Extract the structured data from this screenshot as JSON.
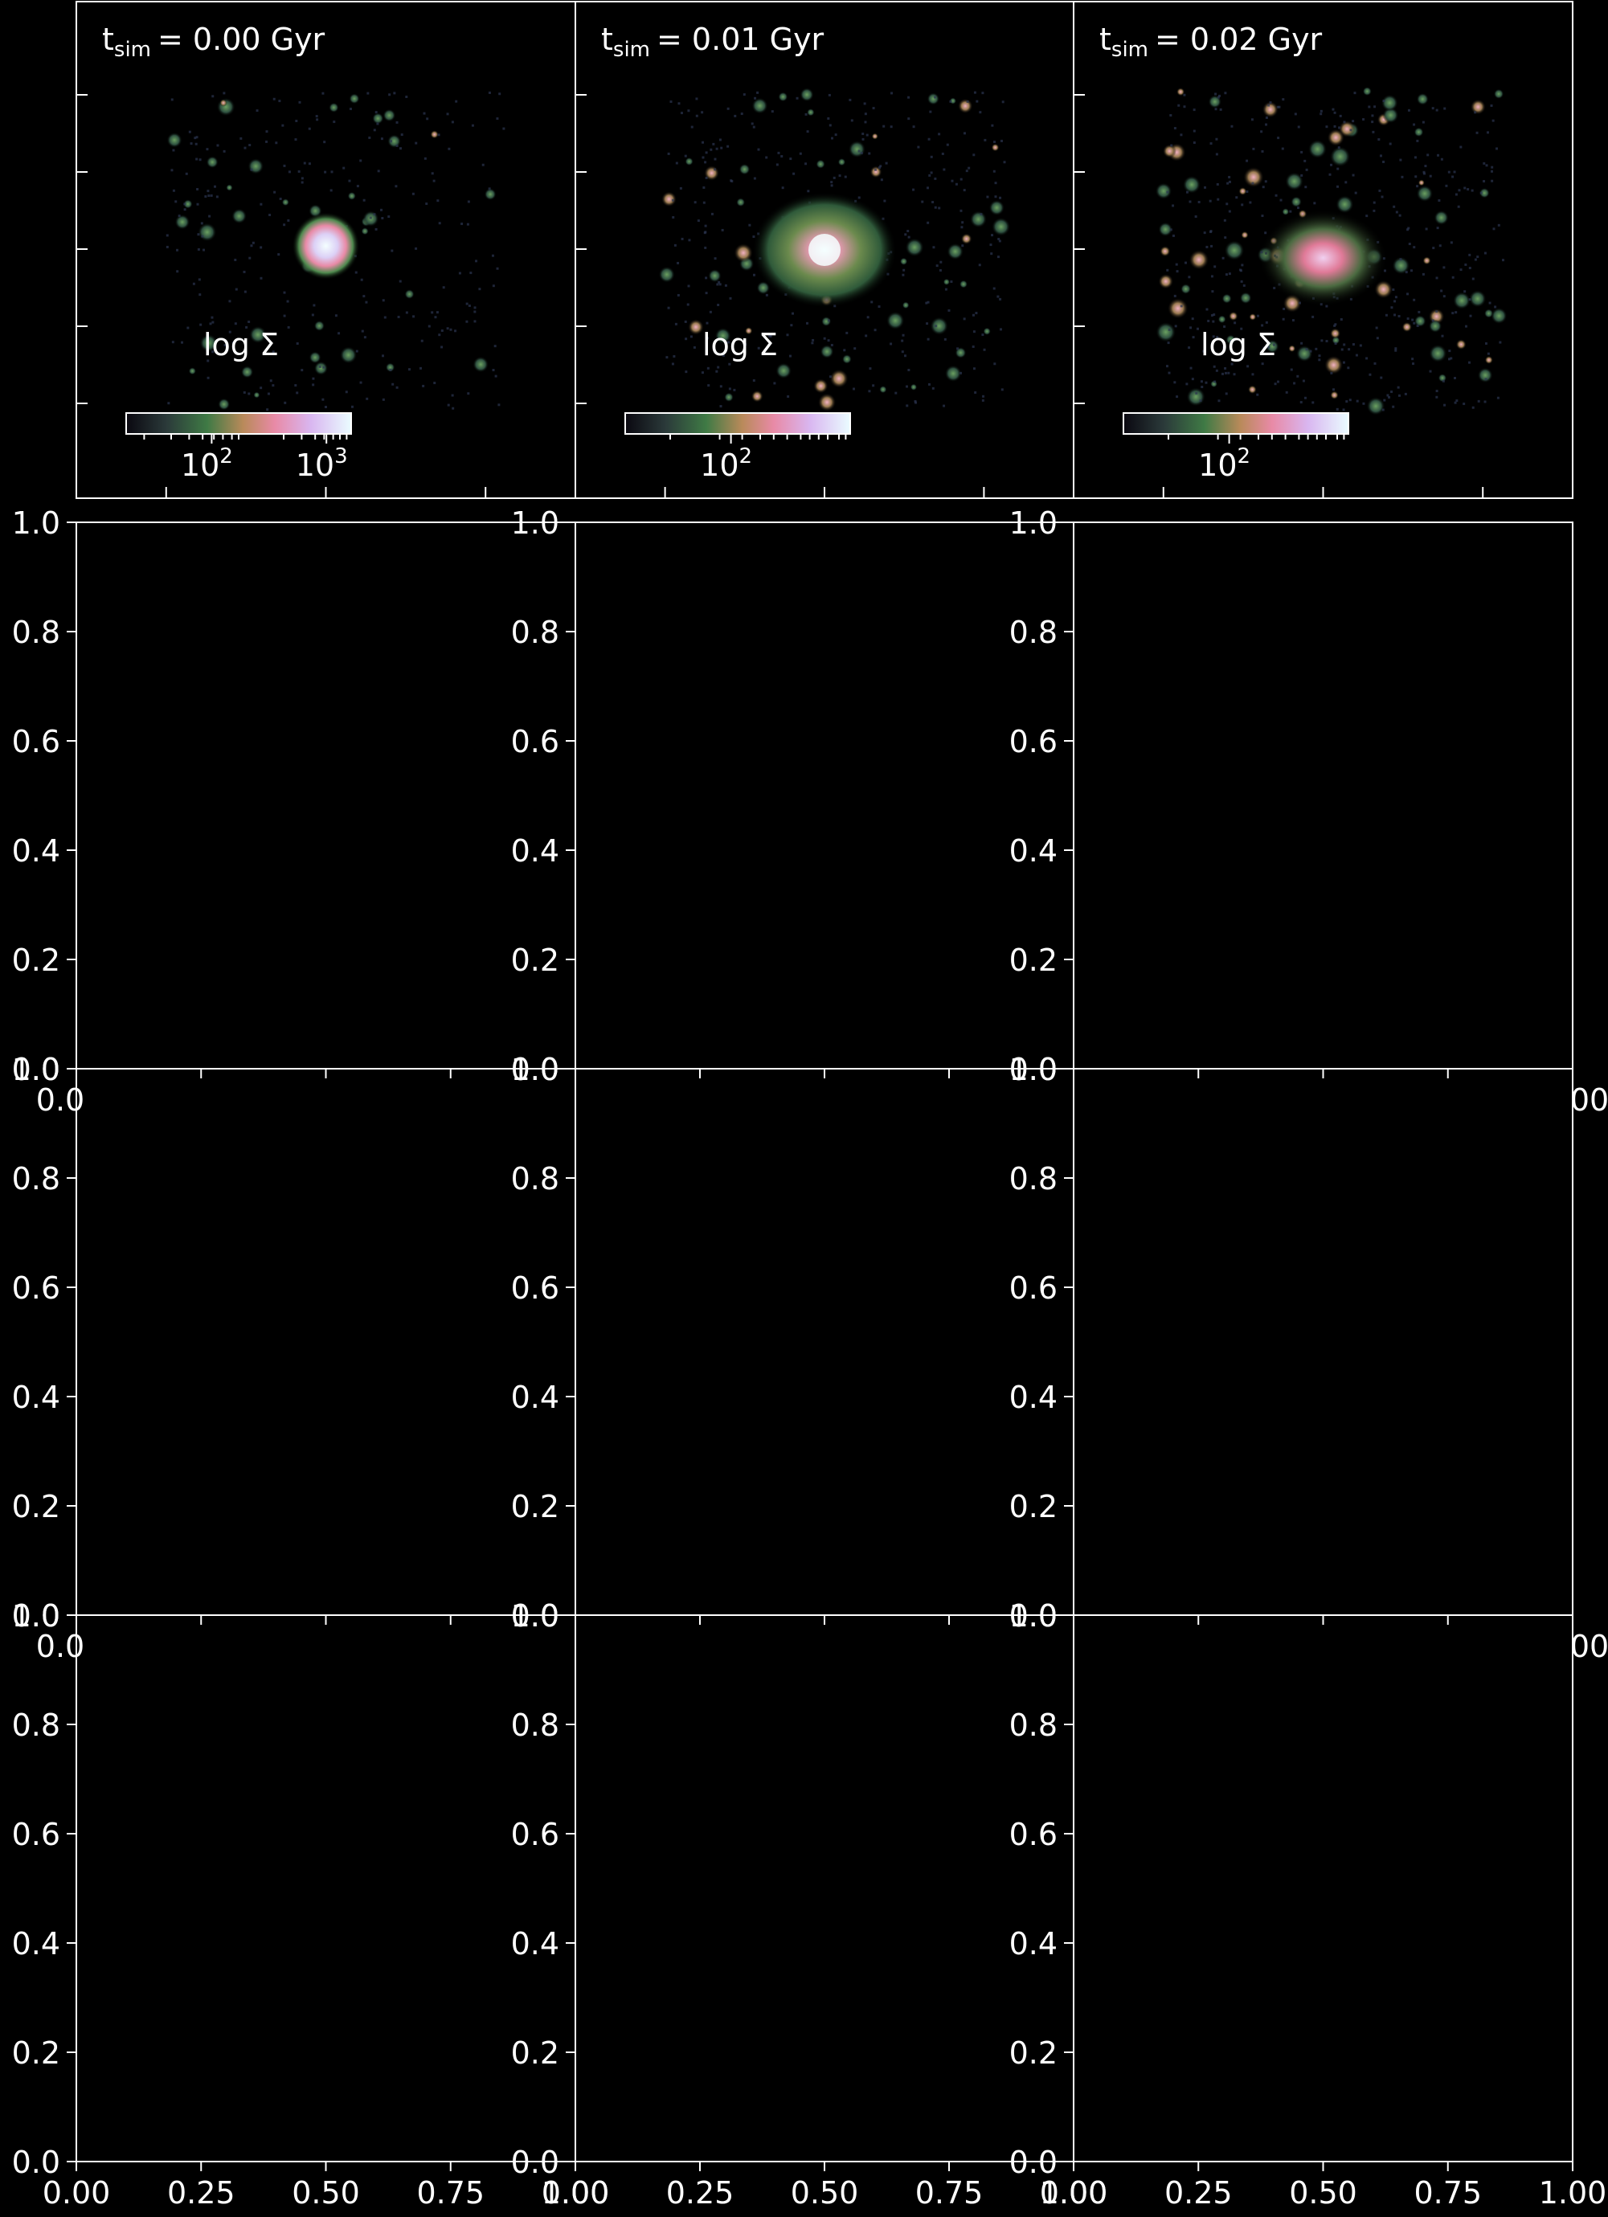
{
  "figure": {
    "background": "#000000",
    "foreground": "#ffffff"
  },
  "chart_data": [
    {
      "type": "heatmap",
      "panel": "row1-col1",
      "title_prefix": "t",
      "title_sub": "sim",
      "title_suffix": "= 0.00 Gyr",
      "colorbar": {
        "label": "log Σ",
        "ticks": [
          "10",
          "10"
        ],
        "tick_exponents": [
          "2",
          "3"
        ],
        "tick_values": [
          100,
          1000
        ]
      },
      "colormap": [
        "#0a0810",
        "#2b3a3a",
        "#3f7a45",
        "#b98a5a",
        "#e88aa6",
        "#d9b6f0",
        "#eafcff"
      ],
      "blobs": "center-bright-cluster"
    },
    {
      "type": "heatmap",
      "panel": "row1-col2",
      "title_prefix": "t",
      "title_sub": "sim",
      "title_suffix": "= 0.01 Gyr",
      "colorbar": {
        "label": "log Σ",
        "ticks": [
          "10"
        ],
        "tick_exponents": [
          "2"
        ],
        "tick_values": [
          100
        ]
      },
      "colormap": [
        "#0a0810",
        "#2b3a3a",
        "#3f7a45",
        "#b98a5a",
        "#e88aa6",
        "#d9b6f0",
        "#eafcff"
      ],
      "blobs": "ring-cluster"
    },
    {
      "type": "heatmap",
      "panel": "row1-col3",
      "title_prefix": "t",
      "title_sub": "sim",
      "title_suffix": "= 0.02 Gyr",
      "colorbar": {
        "label": "log Σ",
        "ticks": [
          "10"
        ],
        "tick_exponents": [
          "2"
        ],
        "tick_values": [
          100
        ]
      },
      "colormap": [
        "#0a0810",
        "#2b3a3a",
        "#3f7a45",
        "#b98a5a",
        "#e88aa6",
        "#d9b6f0",
        "#eafcff"
      ],
      "blobs": "dispersed-cluster"
    },
    {
      "type": "empty-axes",
      "rows": [
        2,
        3,
        4
      ],
      "cols": [
        1,
        2,
        3
      ],
      "ylim": [
        0,
        1
      ],
      "xlim": [
        0,
        1
      ],
      "yticks": [
        "0.0",
        "0.2",
        "0.4",
        "0.6",
        "0.8",
        "1.0"
      ],
      "xticks": [
        "0.00",
        "0.25",
        "0.50",
        "0.75",
        "1.00"
      ],
      "row_bottom_xtick_fragments": {
        "left": "0.0",
        "right": "00"
      }
    }
  ]
}
